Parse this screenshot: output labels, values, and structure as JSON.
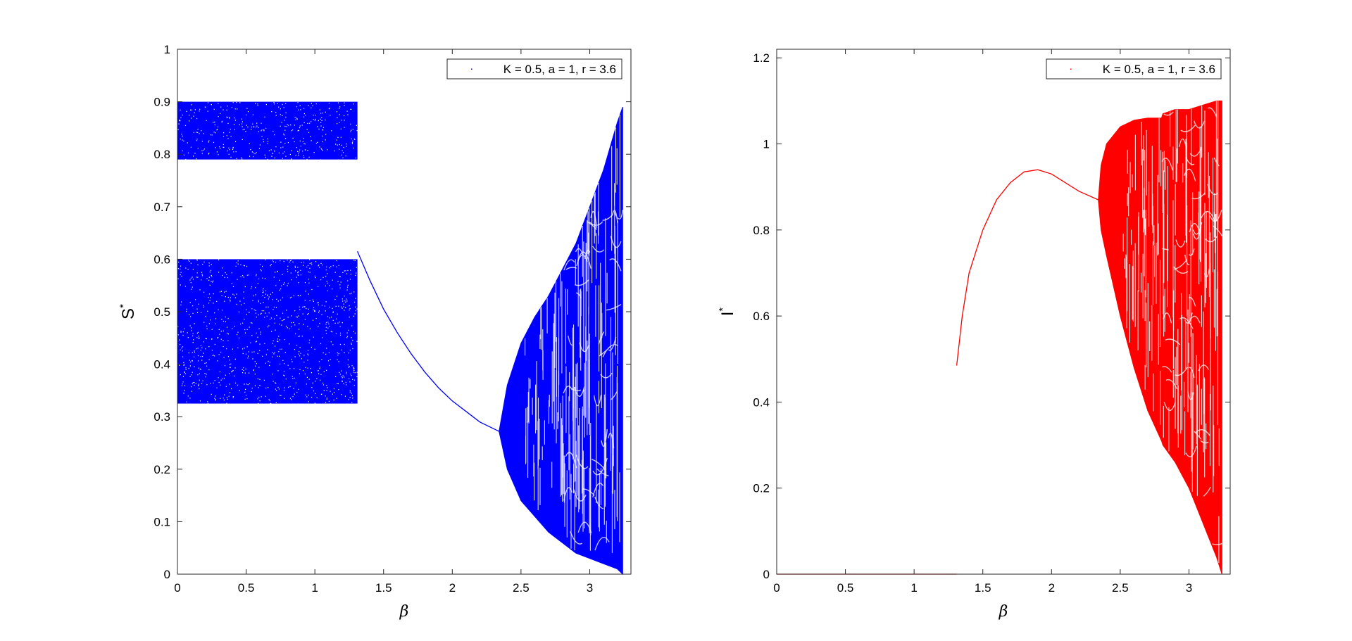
{
  "chart_data": [
    {
      "type": "scatter",
      "xlabel": "β",
      "ylabel": "S",
      "ylabel_superscript": "*",
      "xlim": [
        0,
        3.3
      ],
      "ylim": [
        0,
        1
      ],
      "xticks": [
        "0",
        "0.5",
        "1",
        "1.5",
        "2",
        "2.5",
        "3"
      ],
      "yticks": [
        "0",
        "0.1",
        "0.2",
        "0.3",
        "0.4",
        "0.5",
        "0.6",
        "0.7",
        "0.8",
        "0.9",
        "1"
      ],
      "legend": "K = 0.5, a = 1, r = 3.6",
      "legend_position": "top-right",
      "color": "#0000ff",
      "grid": false,
      "series": [
        {
          "kind": "chaotic-band",
          "x_range": [
            0,
            1.31
          ],
          "y_range": [
            0.79,
            0.9
          ]
        },
        {
          "kind": "chaotic-band",
          "x_range": [
            0,
            1.31
          ],
          "y_range": [
            0.325,
            0.6
          ]
        },
        {
          "kind": "stable-branch",
          "x": [
            1.31,
            1.4,
            1.5,
            1.6,
            1.7,
            1.8,
            1.9,
            2.0,
            2.1,
            2.2,
            2.34
          ],
          "y": [
            0.615,
            0.56,
            0.505,
            0.46,
            0.42,
            0.385,
            0.355,
            0.33,
            0.31,
            0.29,
            0.272
          ]
        },
        {
          "kind": "bifurcation-envelope",
          "x": [
            2.34,
            2.4,
            2.5,
            2.6,
            2.7,
            2.8,
            2.9,
            3.0,
            3.1,
            3.2,
            3.24
          ],
          "y_upper": [
            0.272,
            0.36,
            0.44,
            0.49,
            0.53,
            0.58,
            0.63,
            0.7,
            0.77,
            0.86,
            0.89
          ],
          "y_lower": [
            0.272,
            0.2,
            0.14,
            0.11,
            0.08,
            0.06,
            0.04,
            0.03,
            0.02,
            0.01,
            0.0
          ]
        }
      ]
    },
    {
      "type": "scatter",
      "xlabel": "β",
      "ylabel": "I",
      "ylabel_superscript": "*",
      "xlim": [
        0,
        3.3
      ],
      "ylim": [
        0,
        1.22
      ],
      "xticks": [
        "0",
        "0.5",
        "1",
        "1.5",
        "2",
        "2.5",
        "3"
      ],
      "yticks": [
        "0",
        "0.2",
        "0.4",
        "0.6",
        "0.8",
        "1",
        "1.2"
      ],
      "legend": "K = 0.5, a = 1, r = 3.6",
      "legend_position": "top-right",
      "color": "#ff0000",
      "grid": false,
      "series": [
        {
          "kind": "zero-branch",
          "x": [
            0,
            1.31
          ],
          "y": [
            0,
            0
          ]
        },
        {
          "kind": "stable-branch",
          "x": [
            1.31,
            1.35,
            1.4,
            1.5,
            1.6,
            1.7,
            1.8,
            1.9,
            2.0,
            2.1,
            2.2,
            2.34
          ],
          "y": [
            0.485,
            0.6,
            0.7,
            0.8,
            0.87,
            0.91,
            0.935,
            0.94,
            0.93,
            0.91,
            0.89,
            0.87
          ]
        },
        {
          "kind": "bifurcation-envelope",
          "x": [
            2.34,
            2.36,
            2.4,
            2.5,
            2.6,
            2.7,
            2.8,
            2.81,
            2.9,
            3.0,
            3.1,
            3.2,
            3.24
          ],
          "y_upper": [
            0.87,
            0.95,
            1.0,
            1.04,
            1.055,
            1.06,
            1.06,
            1.07,
            1.08,
            1.08,
            1.09,
            1.1,
            1.1
          ],
          "y_lower": [
            0.87,
            0.8,
            0.74,
            0.6,
            0.48,
            0.38,
            0.31,
            0.3,
            0.26,
            0.2,
            0.12,
            0.04,
            0.0
          ]
        }
      ]
    }
  ]
}
